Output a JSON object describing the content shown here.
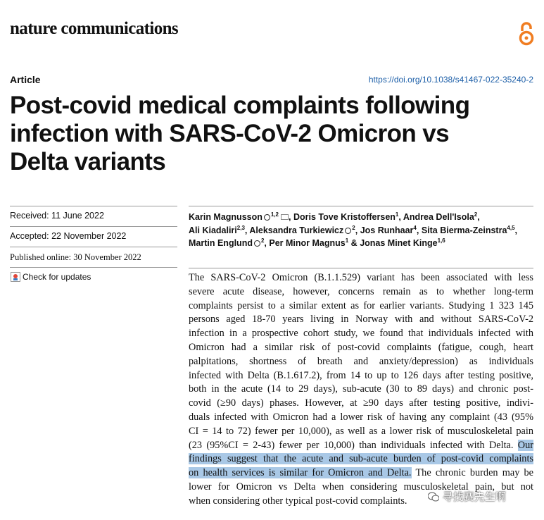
{
  "journal": "nature communications",
  "article_type": "Article",
  "doi": "https://doi.org/10.1038/s41467-022-35240-2",
  "title_lines": [
    "Post-covid medical complaints following",
    "infection with SARS-CoV-2 Omicron vs",
    "Delta variants"
  ],
  "received": "Received: 11 June 2022",
  "accepted": "Accepted: 22 November 2022",
  "published": "Published online: 30 November 2022",
  "check_updates": "Check for updates",
  "authors": [
    [
      {
        "name": "Karin Magnusson",
        "orcid": true,
        "sup": "1,2",
        "email": true,
        "sep": ","
      },
      {
        "name": "Doris Tove Kristoffersen",
        "sup": "1",
        "sep": ","
      },
      {
        "name": "Andrea Dell'Isola",
        "sup": "2",
        "sep": ","
      }
    ],
    [
      {
        "name": "Ali Kiadaliri",
        "sup": "2,3",
        "sep": ","
      },
      {
        "name": "Aleksandra Turkiewicz",
        "orcid": true,
        "sup": "2",
        "sep": ","
      },
      {
        "name": "Jos Runhaar",
        "sup": "4",
        "sep": ","
      },
      {
        "name": "Sita Bierma-Zeinstra",
        "sup": "4,5",
        "sep": ","
      }
    ],
    [
      {
        "name": "Martin Englund",
        "orcid": true,
        "sup": "2",
        "sep": ","
      },
      {
        "name": "Per Minor Magnus",
        "sup": "1",
        "sep": "&"
      },
      {
        "name": "Jonas Minet Kinge",
        "sup": "1,6"
      }
    ]
  ],
  "abstract_lines": [
    "The SARS-CoV-2 Omicron (B.1.1.529) variant has been associated with less",
    "severe acute disease, however, concerns remain as to whether long-term",
    "complaints persist to a similar extent as for earlier variants. Studying 1 323 145",
    "persons aged 18-70 years living in Norway with and without SARS-CoV-2",
    "infection in a prospective cohort study, we found that individuals infected with",
    "Omicron had a similar risk of post-covid complaints (fatigue, cough, heart",
    "palpitations, shortness of breath and anxiety/depression) as individuals",
    "infected with Delta (B.1.617.2), from 14 to up to 126 days after testing positive,",
    "both in the acute (14 to 29 days), sub-acute (30 to 89 days) and chronic post-",
    "covid (≥90 days) phases. However, at ≥90 days after testing positive, indivi-",
    "duals infected with Omicron had a lower risk of having any complaint (43 (95%",
    "CI = 14 to 72) fewer per 10,000), as well as a lower risk of musculoskeletal pain",
    [
      {
        "text": "(23 (95%CI = 2-43) fewer per 10,000) than individuals infected with Delta."
      },
      {
        "text": "Our",
        "highlight": true
      }
    ],
    [
      {
        "text": "findings suggest that the acute and sub-acute burden of post-covid complaints",
        "highlight": true
      }
    ],
    [
      {
        "text": "on health services is similar for Omicron and Delta.",
        "highlight": true
      },
      {
        "text": "The chronic burden may be"
      }
    ],
    "lower for Omicron vs Delta when considering musculoskeletal pain, but not",
    "when considering other typical post-covid complaints."
  ],
  "watermark": "寻找赛先生啊"
}
